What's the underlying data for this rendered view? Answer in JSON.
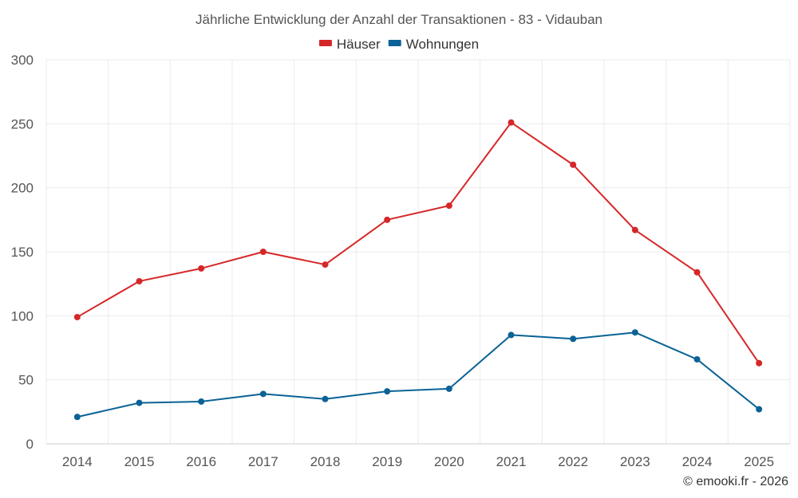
{
  "chart_data": {
    "type": "line",
    "title": "Jährliche Entwicklung der Anzahl der Transaktionen - 83 - Vidauban",
    "categories": [
      "2014",
      "2015",
      "2016",
      "2017",
      "2018",
      "2019",
      "2020",
      "2021",
      "2022",
      "2023",
      "2024",
      "2025"
    ],
    "series": [
      {
        "name": "Häuser",
        "color": "#d62728",
        "values": [
          99,
          127,
          137,
          150,
          140,
          175,
          186,
          251,
          218,
          167,
          134,
          63
        ]
      },
      {
        "name": "Wohnungen",
        "color": "#0a6296",
        "values": [
          21,
          32,
          33,
          39,
          35,
          41,
          43,
          85,
          82,
          87,
          66,
          27
        ]
      }
    ],
    "ylim": [
      0,
      300
    ],
    "yticks": [
      0,
      50,
      100,
      150,
      200,
      250,
      300
    ],
    "grid": true,
    "legend_position": "top-center",
    "xlabel": "",
    "ylabel": ""
  },
  "credit": "© emooki.fr - 2026"
}
